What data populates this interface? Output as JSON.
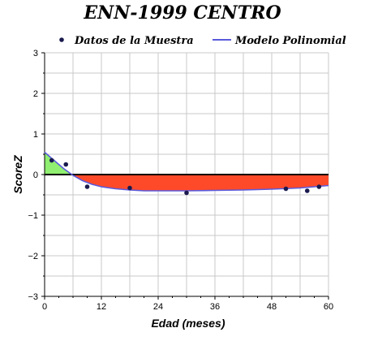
{
  "chart_data": {
    "type": "line",
    "title": "ENN-1999 CENTRO",
    "xlabel": "Edad (meses)",
    "ylabel": "ScoreZ",
    "xlim": [
      0,
      60
    ],
    "ylim": [
      -3,
      3
    ],
    "x_ticks": [
      0,
      12,
      24,
      36,
      48,
      60
    ],
    "y_ticks": [
      3,
      2,
      1,
      0,
      -1,
      -2,
      -3
    ],
    "x_tick_labels": [
      "0",
      "12",
      "24",
      "36",
      "48",
      "60"
    ],
    "y_tick_labels": [
      "3",
      "2",
      "1",
      "0",
      "−1",
      "−2",
      "−3"
    ],
    "grid": true,
    "legend_position": "top",
    "colors": {
      "scatter": "#1a1a4e",
      "model": "#5a5adc",
      "positive_fill": "#90ee70",
      "negative_fill": "#ff4a2a"
    },
    "series": [
      {
        "name": "Datos de la Muestra",
        "kind": "scatter",
        "x": [
          1.5,
          4.5,
          9,
          18,
          30,
          51,
          55.5,
          58
        ],
        "y": [
          0.35,
          0.25,
          -0.3,
          -0.33,
          -0.45,
          -0.35,
          -0.4,
          -0.3
        ]
      },
      {
        "name": "Modelo Polinomial",
        "kind": "line",
        "x": [
          0,
          2,
          4,
          6,
          8,
          10,
          12,
          15,
          18,
          21,
          24,
          30,
          36,
          42,
          48,
          54,
          58,
          60
        ],
        "y": [
          0.55,
          0.35,
          0.15,
          -0.02,
          -0.15,
          -0.24,
          -0.3,
          -0.35,
          -0.38,
          -0.4,
          -0.4,
          -0.4,
          -0.39,
          -0.38,
          -0.36,
          -0.33,
          -0.29,
          -0.27
        ]
      }
    ]
  }
}
